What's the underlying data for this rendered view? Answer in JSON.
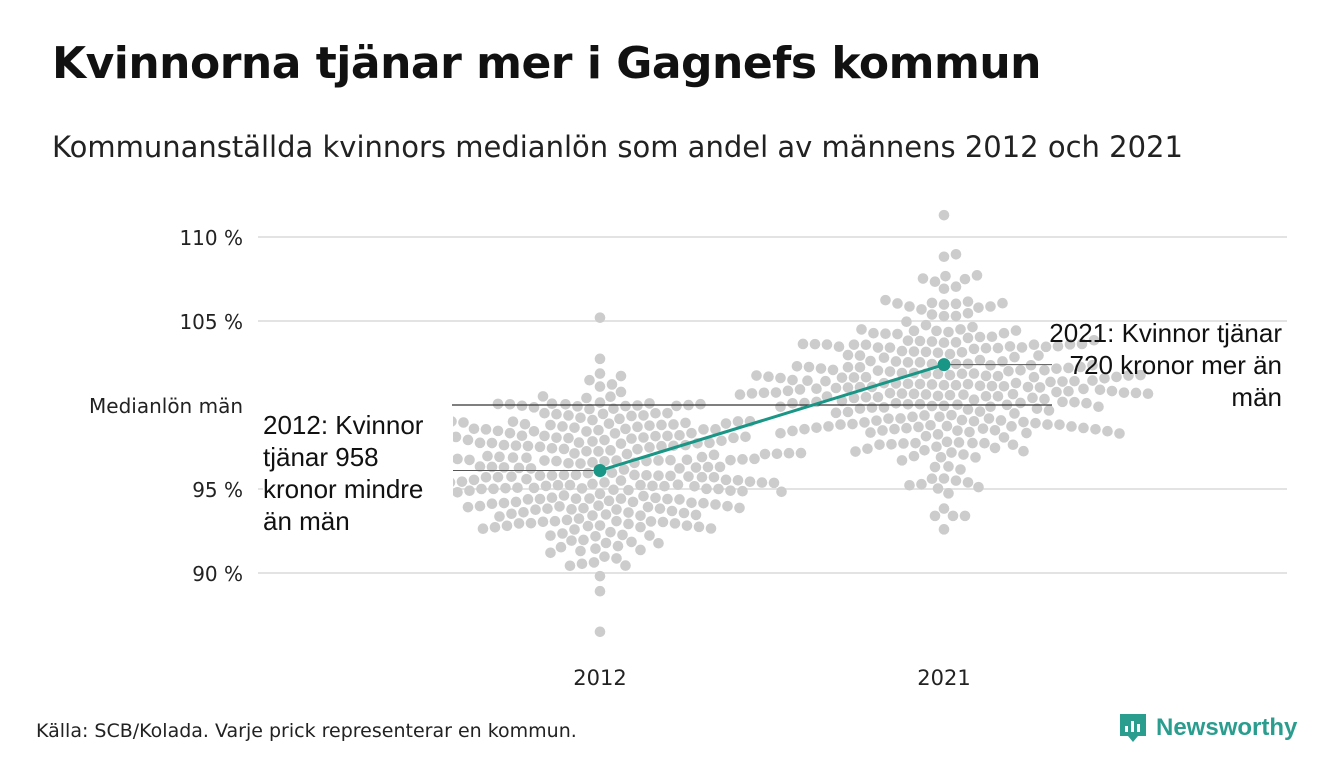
{
  "title": "Kvinnorna tjänar mer i Gagnefs kommun",
  "subtitle": "Kommunanställda kvinnors medianlön som andel av männens 2012 och 2021",
  "source": "Källa: SCB/Kolada. Varje prick representerar en kommun.",
  "logo_text": "Newsworthy",
  "annotations": {
    "y2012": "2012: Kvinnor tjänar 958 kronor mindre än män",
    "y2021": "2021: Kvinnor tjänar 720 kronor mer än män"
  },
  "colors": {
    "highlight": "#1a9686",
    "dots": "#cccccc",
    "grid": "#e3e3e3",
    "logo": "#2a9d8f"
  },
  "chart_data": {
    "type": "scatter",
    "categories": [
      "2012",
      "2021"
    ],
    "reference_line": {
      "label": "Medianlön män",
      "value": 100
    },
    "y_ticks": [
      {
        "value": 110,
        "label": "110 %"
      },
      {
        "value": 105,
        "label": "105 %"
      },
      {
        "value": 95,
        "label": "95 %"
      },
      {
        "value": 90,
        "label": "90 %"
      }
    ],
    "ylim": [
      86.3,
      111.5
    ],
    "highlight": {
      "name": "Gagnefs kommun",
      "values": [
        {
          "x": "2012",
          "y": 96.1
        },
        {
          "x": "2021",
          "y": 102.4
        }
      ]
    },
    "distributions": [
      {
        "x": "2012",
        "median": 96.0,
        "spread": 2.7,
        "min": 86.5,
        "max": 105.2,
        "count": 290
      },
      {
        "x": "2021",
        "median": 101.2,
        "spread": 2.8,
        "min": 92.6,
        "max": 111.3,
        "count": 290
      }
    ]
  }
}
